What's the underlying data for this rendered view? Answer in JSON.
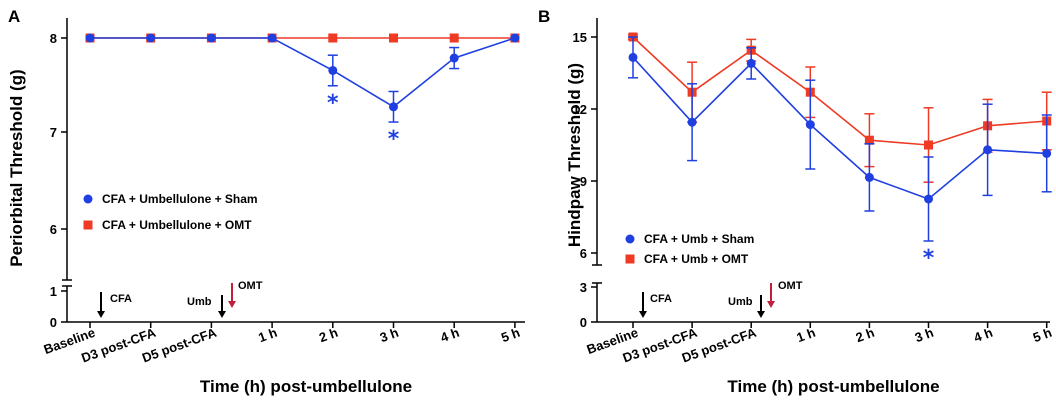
{
  "chart_data": [
    {
      "type": "line",
      "panel_label": "A",
      "ylabel": "Periorbital Threshold (g)",
      "xlabel": "Time (h) post-umbellulone",
      "categories": [
        "Baseline",
        "D3 post-CFA",
        "D5 post-CFA",
        "1 h",
        "2 h",
        "3 h",
        "4 h",
        "5 h"
      ],
      "ylim_upper": [
        5.6,
        8.2
      ],
      "ylim_lower": [
        0,
        1.2
      ],
      "yticks_upper": [
        "6",
        "7",
        "8"
      ],
      "yticks_lower": [
        "0",
        "1"
      ],
      "series": [
        {
          "name": "CFA + Umbellulone + Sham",
          "color": "#1f3fe0",
          "marker": "circle",
          "values": [
            8,
            8,
            8,
            8,
            7.66,
            7.28,
            7.79,
            8
          ],
          "errors": [
            0,
            0,
            0,
            0,
            0.16,
            0.16,
            0.11,
            0
          ]
        },
        {
          "name": "CFA + Umbellulone + OMT",
          "color": "#ef3a24",
          "marker": "square",
          "values": [
            8,
            8,
            8,
            8,
            8,
            8,
            8,
            8
          ],
          "errors": [
            0,
            0,
            0,
            0,
            0,
            0,
            0,
            0
          ]
        }
      ],
      "significance": [
        {
          "category": "2 h",
          "marker": "*"
        },
        {
          "category": "3 h",
          "marker": "*"
        }
      ],
      "annotations": [
        {
          "label": "CFA",
          "category": "Baseline",
          "color": "#000000"
        },
        {
          "label": "Umb",
          "category": "D5 post-CFA",
          "color": "#000000"
        },
        {
          "label": "OMT",
          "category": "D5 post-CFA",
          "color": "#c0203a"
        }
      ],
      "legend": "middle-left"
    },
    {
      "type": "line",
      "panel_label": "B",
      "ylabel": "Hindpaw Threshold (g)",
      "xlabel": "Time (h) post-umbellulone",
      "categories": [
        "Baseline",
        "D3 post-CFA",
        "D5 post-CFA",
        "1 h",
        "2 h",
        "3 h",
        "4 h",
        "5 h"
      ],
      "ylim_upper": [
        6,
        15.3
      ],
      "ylim_lower": [
        0,
        4.5
      ],
      "yticks_upper": [
        "6",
        "9",
        "12",
        "15"
      ],
      "yticks_lower": [
        "0",
        "3"
      ],
      "series": [
        {
          "name": "CFA + Umb + Sham",
          "color": "#1f3fe0",
          "marker": "circle",
          "values": [
            14.15,
            11.45,
            13.9,
            11.35,
            9.15,
            8.25,
            10.3,
            10.15
          ],
          "errors": [
            0.85,
            1.6,
            0.65,
            1.85,
            1.4,
            1.75,
            1.9,
            1.6
          ]
        },
        {
          "name": "CFA + Umb + OMT",
          "color": "#ef3a24",
          "marker": "square",
          "values": [
            15,
            12.7,
            14.45,
            12.7,
            10.7,
            10.5,
            11.3,
            11.5
          ],
          "errors": [
            0.1,
            1.25,
            0.45,
            1.05,
            1.1,
            1.55,
            1.1,
            1.2
          ]
        }
      ],
      "significance": [
        {
          "category": "3 h",
          "marker": "*"
        }
      ],
      "annotations": [
        {
          "label": "CFA",
          "category": "Baseline",
          "color": "#000000"
        },
        {
          "label": "Umb",
          "category": "D5 post-CFA",
          "color": "#000000"
        },
        {
          "label": "OMT",
          "category": "D5 post-CFA",
          "color": "#c0203a"
        }
      ],
      "legend": "lower-left"
    }
  ]
}
